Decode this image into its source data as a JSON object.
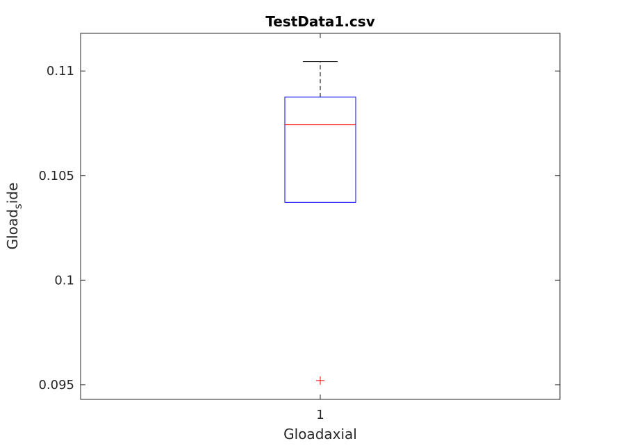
{
  "chart_data": {
    "type": "box",
    "title": "TestData1.csv",
    "xlabel": "Gloadaxial",
    "ylabel": {
      "base": "Gload",
      "subscript": "s",
      "rest": "ide"
    },
    "categories": [
      "1"
    ],
    "ylim": [
      0.0943,
      0.1118
    ],
    "yticks": [
      {
        "value": 0.095,
        "label": "0.095"
      },
      {
        "value": 0.1,
        "label": "0.1"
      },
      {
        "value": 0.105,
        "label": "0.105"
      },
      {
        "value": 0.11,
        "label": "0.11"
      }
    ],
    "boxes": [
      {
        "category": "1",
        "upper_whisker": 0.11045,
        "q3": 0.10875,
        "median": 0.10743,
        "q1": 0.10372,
        "lower_whisker": 0.10372,
        "outliers": [
          0.0952
        ]
      }
    ],
    "grid": false,
    "colors": {
      "box": "#0000ff",
      "median": "#ff0000",
      "whisker": "#000000",
      "outlier": "#ff0000",
      "axes": "#262626"
    }
  }
}
